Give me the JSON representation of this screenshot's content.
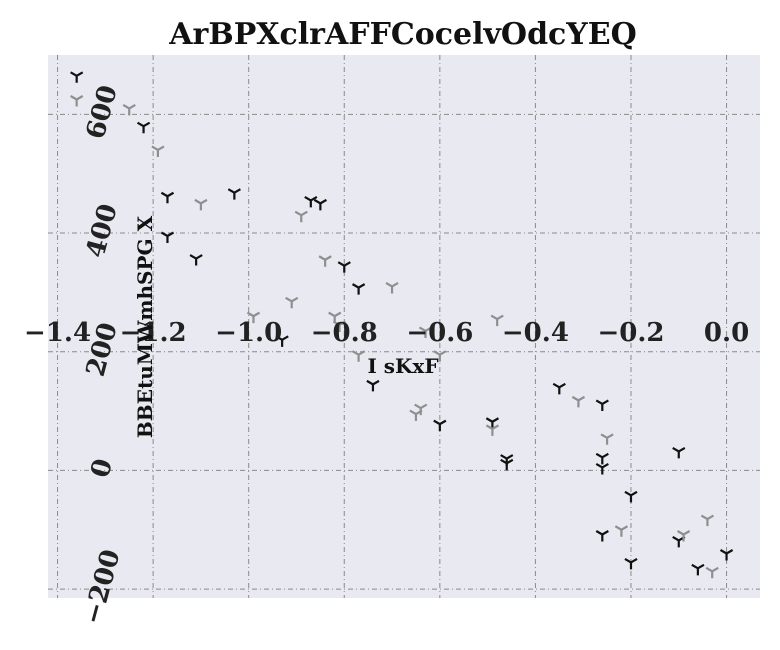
{
  "chart_data": {
    "type": "scatter",
    "title": "ArBPXclrAFFCocelvOdcYEQ",
    "xlabel": "I sKxF",
    "ylabel": "BBEtuMWmhSPG X",
    "xlim": [
      -1.42,
      0.07
    ],
    "ylim": [
      -215,
      700
    ],
    "xticks": [
      -1.4,
      -1.2,
      -1.0,
      -0.8,
      -0.6,
      -0.4,
      -0.2,
      0.0
    ],
    "xtick_labels": [
      "−1.4",
      "−1.2",
      "−1.0",
      "−0.8",
      "−0.6",
      "−0.4",
      "−0.2",
      "0.0"
    ],
    "yticks": [
      -200,
      0,
      200,
      400,
      600
    ],
    "ytick_labels": [
      "−200",
      "0",
      "200",
      "400",
      "600"
    ],
    "grid": true,
    "background": "#e9e9f1",
    "marker": "tri_down",
    "series": [
      {
        "color": "#111111",
        "points": [
          [
            -1.36,
            665
          ],
          [
            -1.22,
            580
          ],
          [
            -1.17,
            462
          ],
          [
            -1.17,
            395
          ],
          [
            -1.11,
            357
          ],
          [
            -1.03,
            468
          ],
          [
            -0.93,
            220
          ],
          [
            -0.87,
            455
          ],
          [
            -0.85,
            450
          ],
          [
            -0.8,
            345
          ],
          [
            -0.77,
            308
          ],
          [
            -0.74,
            145
          ],
          [
            -0.6,
            78
          ],
          [
            -0.49,
            82
          ],
          [
            -0.46,
            20
          ],
          [
            -0.46,
            12
          ],
          [
            -0.35,
            140
          ],
          [
            -0.26,
            112
          ],
          [
            -0.26,
            22
          ],
          [
            -0.26,
            5
          ],
          [
            -0.26,
            -108
          ],
          [
            -0.2,
            -42
          ],
          [
            -0.2,
            -155
          ],
          [
            -0.1,
            32
          ],
          [
            -0.1,
            -118
          ],
          [
            -0.06,
            -165
          ],
          [
            0.0,
            -140
          ]
        ]
      },
      {
        "color": "#8f8f8f",
        "points": [
          [
            -1.36,
            625
          ],
          [
            -1.25,
            610
          ],
          [
            -1.19,
            540
          ],
          [
            -1.1,
            450
          ],
          [
            -0.99,
            260
          ],
          [
            -0.91,
            285
          ],
          [
            -0.89,
            430
          ],
          [
            -0.84,
            355
          ],
          [
            -0.82,
            260
          ],
          [
            -0.81,
            245
          ],
          [
            -0.77,
            195
          ],
          [
            -0.7,
            310
          ],
          [
            -0.65,
            95
          ],
          [
            -0.64,
            105
          ],
          [
            -0.63,
            235
          ],
          [
            -0.6,
            195
          ],
          [
            -0.49,
            70
          ],
          [
            -0.48,
            255
          ],
          [
            -0.31,
            118
          ],
          [
            -0.25,
            55
          ],
          [
            -0.22,
            -100
          ],
          [
            -0.09,
            -108
          ],
          [
            -0.04,
            -82
          ],
          [
            -0.03,
            -170
          ]
        ]
      }
    ]
  }
}
